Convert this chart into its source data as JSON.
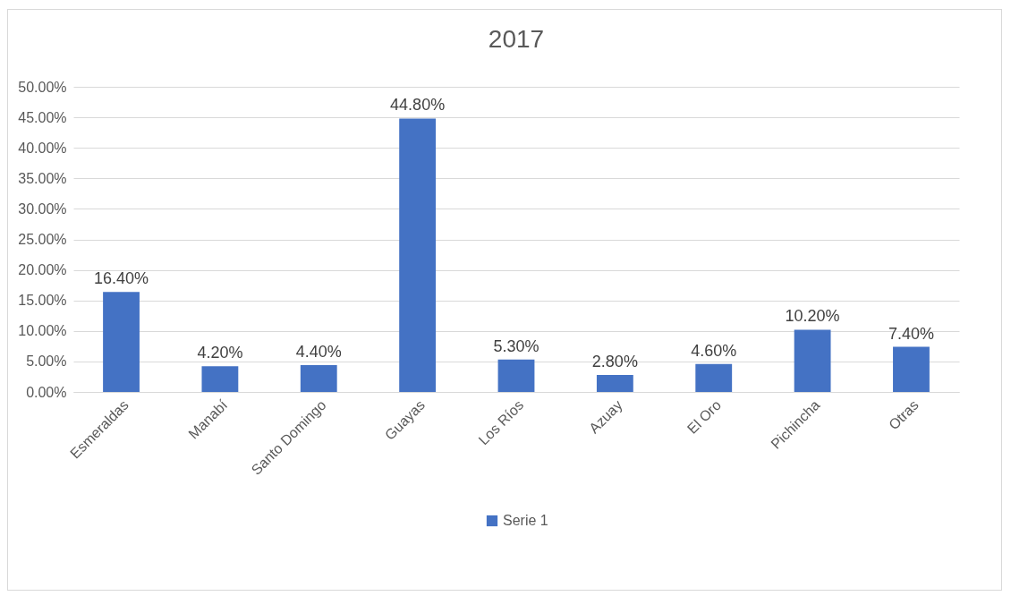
{
  "chart_data": {
    "type": "bar",
    "title": "2017",
    "categories": [
      "Esmeraldas",
      "Manabí",
      "Santo Domingo",
      "Guayas",
      "Los Ríos",
      "Azuay",
      "El Oro",
      "Pichincha",
      "Otras"
    ],
    "series": [
      {
        "name": "Serie 1",
        "color": "#4472c4",
        "values": [
          16.4,
          4.2,
          4.4,
          44.8,
          5.3,
          2.8,
          4.6,
          10.2,
          7.4
        ],
        "value_labels": [
          "16.40%",
          "4.20%",
          "4.40%",
          "44.80%",
          "5.30%",
          "2.80%",
          "4.60%",
          "10.20%",
          "7.40%"
        ]
      }
    ],
    "ylim": [
      0,
      50
    ],
    "yticks": [
      {
        "value": 0,
        "label": "0.00%"
      },
      {
        "value": 5,
        "label": "5.00%"
      },
      {
        "value": 10,
        "label": "10.00%"
      },
      {
        "value": 15,
        "label": "15.00%"
      },
      {
        "value": 20,
        "label": "20.00%"
      },
      {
        "value": 25,
        "label": "25.00%"
      },
      {
        "value": 30,
        "label": "30.00%"
      },
      {
        "value": 35,
        "label": "35.00%"
      },
      {
        "value": 40,
        "label": "40.00%"
      },
      {
        "value": 45,
        "label": "45.00%"
      },
      {
        "value": 50,
        "label": "50.00%"
      }
    ],
    "grid": "y",
    "legend": "bottom"
  }
}
